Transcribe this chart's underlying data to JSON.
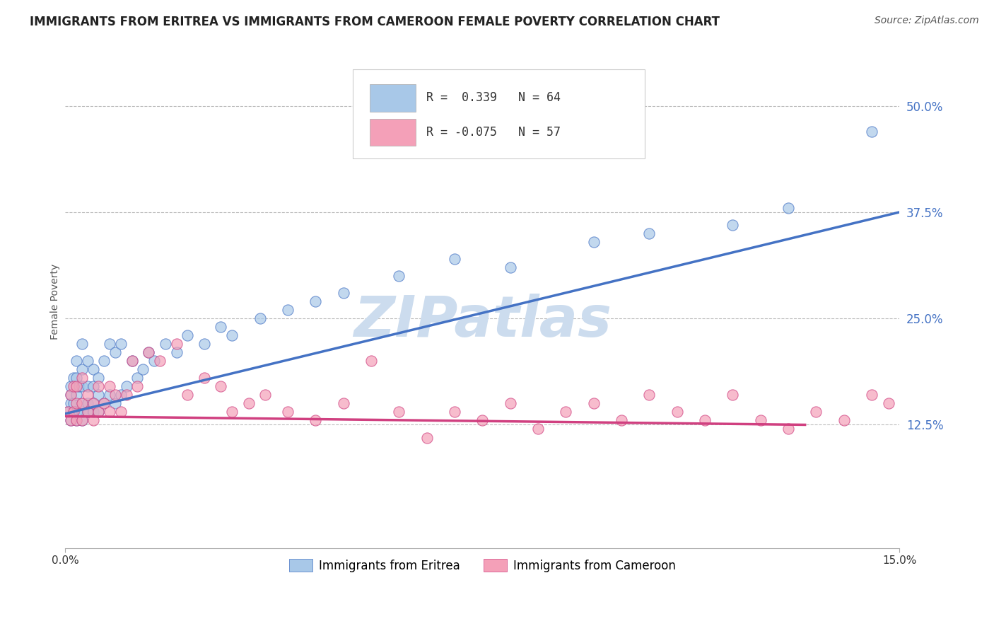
{
  "title": "IMMIGRANTS FROM ERITREA VS IMMIGRANTS FROM CAMEROON FEMALE POVERTY CORRELATION CHART",
  "source": "Source: ZipAtlas.com",
  "ylabel": "Female Poverty",
  "xlim": [
    0.0,
    0.15
  ],
  "ylim": [
    -0.02,
    0.56
  ],
  "ytick_vals": [
    0.125,
    0.25,
    0.375,
    0.5
  ],
  "ytick_labels": [
    "12.5%",
    "25.0%",
    "37.5%",
    "50.0%"
  ],
  "series1_label": "Immigrants from Eritrea",
  "series1_color": "#a8c8e8",
  "series1_R": 0.339,
  "series1_N": 64,
  "series2_label": "Immigrants from Cameroon",
  "series2_color": "#f4a0b8",
  "series2_R": -0.075,
  "series2_N": 57,
  "line1_color": "#4472c4",
  "line2_color": "#d04080",
  "watermark": "ZIPatlas",
  "watermark_color": "#ccdcee",
  "title_fontsize": 12,
  "axis_label_fontsize": 10,
  "tick_fontsize": 11,
  "source_fontsize": 10,
  "scatter1_x": [
    0.0005,
    0.001,
    0.001,
    0.001,
    0.001,
    0.0015,
    0.0015,
    0.0015,
    0.002,
    0.002,
    0.002,
    0.002,
    0.002,
    0.0025,
    0.0025,
    0.003,
    0.003,
    0.003,
    0.003,
    0.003,
    0.003,
    0.004,
    0.004,
    0.004,
    0.004,
    0.005,
    0.005,
    0.005,
    0.005,
    0.006,
    0.006,
    0.006,
    0.007,
    0.007,
    0.008,
    0.008,
    0.009,
    0.009,
    0.01,
    0.01,
    0.011,
    0.012,
    0.013,
    0.014,
    0.015,
    0.016,
    0.018,
    0.02,
    0.022,
    0.025,
    0.028,
    0.03,
    0.035,
    0.04,
    0.045,
    0.05,
    0.06,
    0.07,
    0.08,
    0.095,
    0.105,
    0.12,
    0.13,
    0.145
  ],
  "scatter1_y": [
    0.14,
    0.13,
    0.15,
    0.16,
    0.17,
    0.14,
    0.15,
    0.18,
    0.13,
    0.14,
    0.16,
    0.18,
    0.2,
    0.14,
    0.17,
    0.13,
    0.14,
    0.15,
    0.17,
    0.19,
    0.22,
    0.14,
    0.15,
    0.17,
    0.2,
    0.14,
    0.15,
    0.17,
    0.19,
    0.14,
    0.16,
    0.18,
    0.15,
    0.2,
    0.16,
    0.22,
    0.15,
    0.21,
    0.16,
    0.22,
    0.17,
    0.2,
    0.18,
    0.19,
    0.21,
    0.2,
    0.22,
    0.21,
    0.23,
    0.22,
    0.24,
    0.23,
    0.25,
    0.26,
    0.27,
    0.28,
    0.3,
    0.32,
    0.31,
    0.34,
    0.35,
    0.36,
    0.38,
    0.47
  ],
  "scatter2_x": [
    0.0005,
    0.001,
    0.001,
    0.0015,
    0.0015,
    0.002,
    0.002,
    0.002,
    0.003,
    0.003,
    0.003,
    0.004,
    0.004,
    0.005,
    0.005,
    0.006,
    0.006,
    0.007,
    0.008,
    0.008,
    0.009,
    0.01,
    0.011,
    0.012,
    0.013,
    0.015,
    0.017,
    0.02,
    0.022,
    0.025,
    0.028,
    0.03,
    0.033,
    0.036,
    0.04,
    0.045,
    0.05,
    0.055,
    0.06,
    0.065,
    0.07,
    0.075,
    0.08,
    0.085,
    0.09,
    0.095,
    0.1,
    0.105,
    0.11,
    0.115,
    0.12,
    0.125,
    0.13,
    0.135,
    0.14,
    0.145,
    0.148
  ],
  "scatter2_y": [
    0.14,
    0.13,
    0.16,
    0.14,
    0.17,
    0.13,
    0.15,
    0.17,
    0.13,
    0.15,
    0.18,
    0.14,
    0.16,
    0.13,
    0.15,
    0.14,
    0.17,
    0.15,
    0.14,
    0.17,
    0.16,
    0.14,
    0.16,
    0.2,
    0.17,
    0.21,
    0.2,
    0.22,
    0.16,
    0.18,
    0.17,
    0.14,
    0.15,
    0.16,
    0.14,
    0.13,
    0.15,
    0.2,
    0.14,
    0.11,
    0.14,
    0.13,
    0.15,
    0.12,
    0.14,
    0.15,
    0.13,
    0.16,
    0.14,
    0.13,
    0.16,
    0.13,
    0.12,
    0.14,
    0.13,
    0.16,
    0.15
  ]
}
